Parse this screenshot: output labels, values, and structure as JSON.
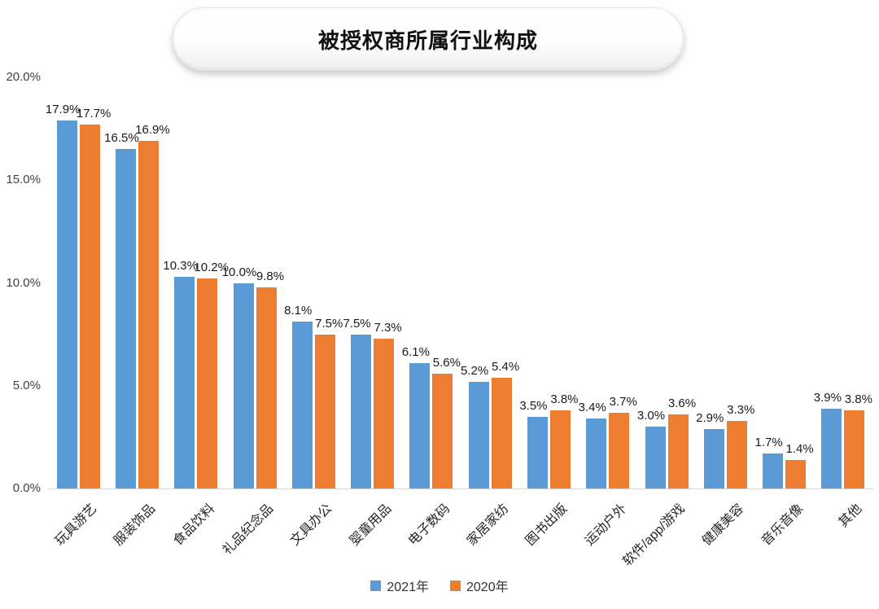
{
  "title": "被授权商所属行业构成",
  "colors": {
    "series_2021": "#5B9BD5",
    "series_2020": "#ED7D31",
    "axis_line": "#d9d9d9",
    "tick_text": "#404040",
    "data_label_text": "#1a1a1a"
  },
  "chart_data": {
    "type": "bar",
    "title": "被授权商所属行业构成",
    "categories": [
      "玩具游艺",
      "服装饰品",
      "食品饮料",
      "礼品纪念品",
      "文具办公",
      "婴童用品",
      "电子数码",
      "家居家纺",
      "图书出版",
      "运动户外",
      "软件/app/游戏",
      "健康美容",
      "音乐音像",
      "其他"
    ],
    "series": [
      {
        "name": "2021年",
        "color": "#5B9BD5",
        "values": [
          17.9,
          16.5,
          10.3,
          10.0,
          8.1,
          7.5,
          6.1,
          5.2,
          3.5,
          3.4,
          3.0,
          2.9,
          1.7,
          3.9
        ]
      },
      {
        "name": "2020年",
        "color": "#ED7D31",
        "values": [
          17.7,
          16.9,
          10.2,
          9.8,
          7.5,
          7.3,
          5.6,
          5.4,
          3.8,
          3.7,
          3.6,
          3.3,
          1.4,
          3.8
        ]
      }
    ],
    "value_labels_shown": true,
    "value_label_suffix": "%",
    "yticks": [
      {
        "value": 0,
        "label": "0.0%"
      },
      {
        "value": 5,
        "label": "5.0%"
      },
      {
        "value": 10,
        "label": "10.0%"
      },
      {
        "value": 15,
        "label": "15.0%"
      },
      {
        "value": 20,
        "label": "20.0%"
      }
    ],
    "ylim": [
      0,
      20
    ],
    "grid": false,
    "legend_position": "bottom"
  }
}
